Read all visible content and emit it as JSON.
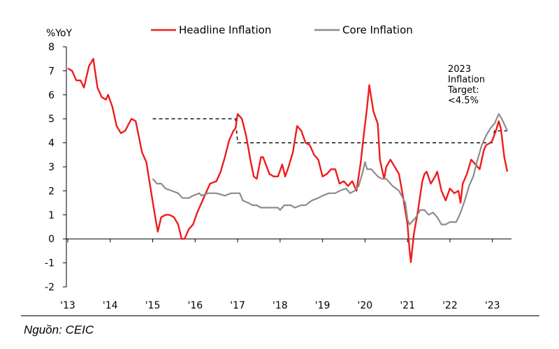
{
  "source": {
    "label": "Nguồn:",
    "name": "CEIC"
  },
  "chart_data": {
    "type": "line",
    "ylabel": "%YoY",
    "ylim": [
      -2,
      8
    ],
    "yticks": [
      -2,
      -1,
      0,
      1,
      2,
      3,
      4,
      5,
      6,
      7,
      8
    ],
    "xlim": [
      2013.0,
      2023.4
    ],
    "xticks": [
      {
        "value": 2013,
        "label": "'13"
      },
      {
        "value": 2014,
        "label": "'14"
      },
      {
        "value": 2015,
        "label": "'15"
      },
      {
        "value": 2016,
        "label": "'16"
      },
      {
        "value": 2017,
        "label": "'17"
      },
      {
        "value": 2018,
        "label": "'18"
      },
      {
        "value": 2019,
        "label": "'19"
      },
      {
        "value": 2020,
        "label": "'20"
      },
      {
        "value": 2021,
        "label": "'21"
      },
      {
        "value": 2022,
        "label": "'22"
      },
      {
        "value": 2023,
        "label": "'23"
      }
    ],
    "grid": false,
    "legend": "top-center",
    "series": [
      {
        "name": "Headline Inflation",
        "color": "#ee1c1c",
        "points": [
          [
            2013.0,
            7.1
          ],
          [
            2013.1,
            7.0
          ],
          [
            2013.2,
            6.6
          ],
          [
            2013.3,
            6.6
          ],
          [
            2013.38,
            6.3
          ],
          [
            2013.5,
            7.2
          ],
          [
            2013.6,
            7.5
          ],
          [
            2013.7,
            6.3
          ],
          [
            2013.8,
            5.9
          ],
          [
            2013.9,
            5.8
          ],
          [
            2013.95,
            6.0
          ],
          [
            2014.05,
            5.5
          ],
          [
            2014.15,
            4.7
          ],
          [
            2014.25,
            4.4
          ],
          [
            2014.35,
            4.5
          ],
          [
            2014.5,
            5.0
          ],
          [
            2014.6,
            4.9
          ],
          [
            2014.75,
            3.6
          ],
          [
            2014.85,
            3.2
          ],
          [
            2014.95,
            2.1
          ],
          [
            2015.05,
            1.0
          ],
          [
            2015.12,
            0.3
          ],
          [
            2015.2,
            0.9
          ],
          [
            2015.3,
            1.0
          ],
          [
            2015.4,
            1.0
          ],
          [
            2015.5,
            0.9
          ],
          [
            2015.6,
            0.6
          ],
          [
            2015.68,
            0.0
          ],
          [
            2015.75,
            0.0
          ],
          [
            2015.85,
            0.4
          ],
          [
            2015.95,
            0.6
          ],
          [
            2016.05,
            1.1
          ],
          [
            2016.15,
            1.5
          ],
          [
            2016.25,
            1.9
          ],
          [
            2016.35,
            2.3
          ],
          [
            2016.5,
            2.4
          ],
          [
            2016.6,
            2.8
          ],
          [
            2016.7,
            3.4
          ],
          [
            2016.8,
            4.1
          ],
          [
            2016.9,
            4.5
          ],
          [
            2016.95,
            4.6
          ],
          [
            2017.0,
            5.2
          ],
          [
            2017.1,
            5.0
          ],
          [
            2017.2,
            4.3
          ],
          [
            2017.3,
            3.3
          ],
          [
            2017.38,
            2.6
          ],
          [
            2017.45,
            2.5
          ],
          [
            2017.55,
            3.4
          ],
          [
            2017.6,
            3.4
          ],
          [
            2017.75,
            2.7
          ],
          [
            2017.85,
            2.6
          ],
          [
            2017.95,
            2.6
          ],
          [
            2018.05,
            3.1
          ],
          [
            2018.12,
            2.6
          ],
          [
            2018.2,
            3.0
          ],
          [
            2018.3,
            3.6
          ],
          [
            2018.4,
            4.7
          ],
          [
            2018.5,
            4.5
          ],
          [
            2018.6,
            4.0
          ],
          [
            2018.7,
            3.9
          ],
          [
            2018.8,
            3.5
          ],
          [
            2018.9,
            3.3
          ],
          [
            2019.0,
            2.6
          ],
          [
            2019.1,
            2.7
          ],
          [
            2019.2,
            2.9
          ],
          [
            2019.3,
            2.9
          ],
          [
            2019.4,
            2.3
          ],
          [
            2019.5,
            2.4
          ],
          [
            2019.6,
            2.2
          ],
          [
            2019.7,
            2.4
          ],
          [
            2019.8,
            2.0
          ],
          [
            2019.9,
            3.2
          ],
          [
            2019.95,
            4.0
          ],
          [
            2020.05,
            5.5
          ],
          [
            2020.1,
            6.4
          ],
          [
            2020.2,
            5.3
          ],
          [
            2020.3,
            4.8
          ],
          [
            2020.35,
            3.3
          ],
          [
            2020.45,
            2.5
          ],
          [
            2020.5,
            3.0
          ],
          [
            2020.6,
            3.3
          ],
          [
            2020.7,
            3.0
          ],
          [
            2020.8,
            2.7
          ],
          [
            2020.9,
            1.7
          ],
          [
            2021.0,
            0.6
          ],
          [
            2021.05,
            -0.5
          ],
          [
            2021.08,
            -0.97
          ],
          [
            2021.15,
            0.2
          ],
          [
            2021.25,
            1.2
          ],
          [
            2021.35,
            2.4
          ],
          [
            2021.4,
            2.7
          ],
          [
            2021.45,
            2.8
          ],
          [
            2021.55,
            2.3
          ],
          [
            2021.65,
            2.6
          ],
          [
            2021.7,
            2.8
          ],
          [
            2021.8,
            2.0
          ],
          [
            2021.9,
            1.6
          ],
          [
            2022.0,
            2.1
          ],
          [
            2022.1,
            1.9
          ],
          [
            2022.2,
            2.0
          ],
          [
            2022.25,
            1.5
          ],
          [
            2022.3,
            2.3
          ],
          [
            2022.4,
            2.7
          ],
          [
            2022.5,
            3.3
          ],
          [
            2022.6,
            3.1
          ],
          [
            2022.7,
            2.9
          ],
          [
            2022.8,
            3.7
          ],
          [
            2022.85,
            3.9
          ],
          [
            2022.95,
            4.0
          ],
          [
            2023.0,
            4.1
          ],
          [
            2023.1,
            4.6
          ],
          [
            2023.15,
            4.9
          ],
          [
            2023.2,
            4.6
          ],
          [
            2023.28,
            3.4
          ],
          [
            2023.35,
            2.8
          ]
        ]
      },
      {
        "name": "Core Inflation",
        "color": "#8c8c8c",
        "points": [
          [
            2015.0,
            2.5
          ],
          [
            2015.05,
            2.4
          ],
          [
            2015.1,
            2.3
          ],
          [
            2015.2,
            2.3
          ],
          [
            2015.3,
            2.1
          ],
          [
            2015.45,
            2.0
          ],
          [
            2015.6,
            1.9
          ],
          [
            2015.7,
            1.7
          ],
          [
            2015.85,
            1.7
          ],
          [
            2015.95,
            1.8
          ],
          [
            2016.1,
            1.9
          ],
          [
            2016.15,
            1.8
          ],
          [
            2016.3,
            1.9
          ],
          [
            2016.5,
            1.9
          ],
          [
            2016.7,
            1.8
          ],
          [
            2016.85,
            1.9
          ],
          [
            2017.0,
            1.9
          ],
          [
            2017.05,
            1.9
          ],
          [
            2017.12,
            1.6
          ],
          [
            2017.25,
            1.5
          ],
          [
            2017.35,
            1.4
          ],
          [
            2017.45,
            1.4
          ],
          [
            2017.55,
            1.3
          ],
          [
            2017.7,
            1.3
          ],
          [
            2017.85,
            1.3
          ],
          [
            2017.95,
            1.3
          ],
          [
            2018.0,
            1.2
          ],
          [
            2018.1,
            1.4
          ],
          [
            2018.25,
            1.4
          ],
          [
            2018.35,
            1.3
          ],
          [
            2018.5,
            1.4
          ],
          [
            2018.6,
            1.4
          ],
          [
            2018.75,
            1.6
          ],
          [
            2018.9,
            1.7
          ],
          [
            2019.0,
            1.8
          ],
          [
            2019.15,
            1.9
          ],
          [
            2019.3,
            1.9
          ],
          [
            2019.4,
            2.0
          ],
          [
            2019.55,
            2.1
          ],
          [
            2019.65,
            1.9
          ],
          [
            2019.75,
            2.0
          ],
          [
            2019.85,
            2.2
          ],
          [
            2019.95,
            2.8
          ],
          [
            2020.0,
            3.2
          ],
          [
            2020.05,
            2.9
          ],
          [
            2020.15,
            2.9
          ],
          [
            2020.3,
            2.6
          ],
          [
            2020.4,
            2.5
          ],
          [
            2020.5,
            2.5
          ],
          [
            2020.65,
            2.2
          ],
          [
            2020.8,
            2.0
          ],
          [
            2020.95,
            1.5
          ],
          [
            2021.0,
            0.8
          ],
          [
            2021.05,
            0.6
          ],
          [
            2021.1,
            0.7
          ],
          [
            2021.2,
            0.9
          ],
          [
            2021.3,
            1.2
          ],
          [
            2021.4,
            1.2
          ],
          [
            2021.5,
            1.0
          ],
          [
            2021.6,
            1.1
          ],
          [
            2021.7,
            0.9
          ],
          [
            2021.8,
            0.6
          ],
          [
            2021.9,
            0.6
          ],
          [
            2022.0,
            0.7
          ],
          [
            2022.15,
            0.7
          ],
          [
            2022.25,
            1.1
          ],
          [
            2022.35,
            1.6
          ],
          [
            2022.45,
            2.2
          ],
          [
            2022.55,
            2.6
          ],
          [
            2022.65,
            3.3
          ],
          [
            2022.75,
            3.9
          ],
          [
            2022.85,
            4.3
          ],
          [
            2022.95,
            4.6
          ],
          [
            2023.05,
            4.8
          ],
          [
            2023.15,
            5.2
          ],
          [
            2023.22,
            5.0
          ],
          [
            2023.3,
            4.7
          ],
          [
            2023.35,
            4.5
          ]
        ]
      }
    ],
    "target": {
      "label": "Inflation Target",
      "segments": [
        [
          [
            2015.0,
            5.0
          ],
          [
            2016.95,
            5.0
          ],
          [
            2017.0,
            4.0
          ],
          [
            2023.0,
            4.0
          ],
          [
            2023.05,
            4.5
          ],
          [
            2023.35,
            4.5
          ]
        ]
      ]
    },
    "annotation": {
      "lines": [
        "2023",
        "Inflation",
        "Target:",
        "<4.5%"
      ]
    }
  }
}
